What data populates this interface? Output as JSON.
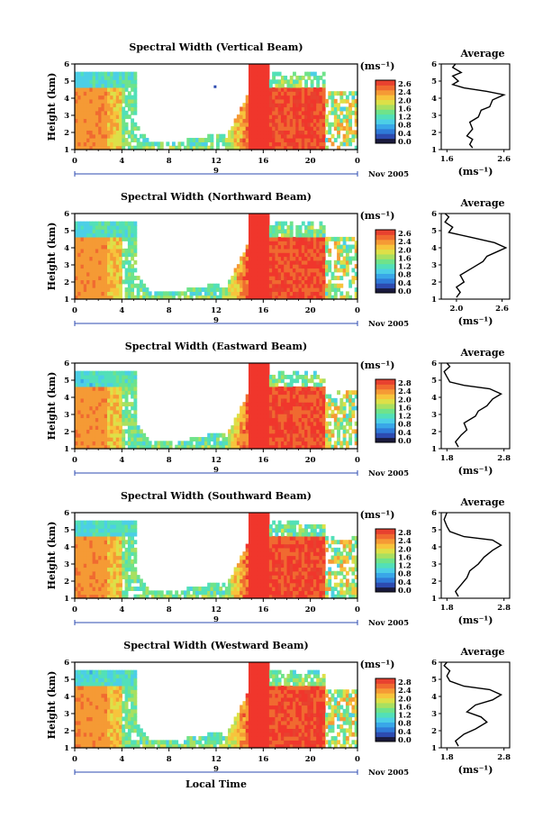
{
  "colors": {
    "scale": [
      "#1a1a3c",
      "#2d4bb0",
      "#2f7bd8",
      "#39a7e8",
      "#4ccfe6",
      "#52e0b8",
      "#6fe38a",
      "#a9e060",
      "#dde048",
      "#f7c43c",
      "#f59a35",
      "#f06a30",
      "#e8412f"
    ],
    "red": "#f0362c",
    "line": "#000000"
  },
  "chart_data": [
    {
      "type": "heatmap",
      "panel": "vertical",
      "title": "Spectral Width (Vertical Beam)",
      "ylabel": "Height (km)",
      "xlabel": "",
      "x_ticks": [
        "0",
        "4",
        "8",
        "12",
        "16",
        "20",
        "0"
      ],
      "y_ticks": [
        "1",
        "2",
        "3",
        "4",
        "5",
        "6"
      ],
      "xlim": [
        0,
        24
      ],
      "ylim": [
        1,
        6
      ],
      "date_label": "9",
      "date_suffix": "Nov 2005",
      "colorbar": {
        "unit": "(ms⁻¹)",
        "ticks": [
          "2.6",
          "2.4",
          "2.0",
          "1.6",
          "1.2",
          "0.8",
          "0.4",
          "0.0"
        ],
        "range": [
          0.0,
          2.6
        ]
      },
      "average": {
        "title": "Average",
        "xlabel": "(ms⁻¹)",
        "x_ticks": [
          "1.6",
          "2.6"
        ],
        "xlim": [
          1.5,
          2.7
        ],
        "y_ticks": [
          "1",
          "2",
          "3",
          "4",
          "5",
          "6"
        ],
        "ylim": [
          1,
          6
        ],
        "profile": [
          [
            2.05,
            1.1
          ],
          [
            2.0,
            1.3
          ],
          [
            2.05,
            1.6
          ],
          [
            1.95,
            1.8
          ],
          [
            2.05,
            2.2
          ],
          [
            2.0,
            2.6
          ],
          [
            2.15,
            2.9
          ],
          [
            2.2,
            3.3
          ],
          [
            2.35,
            3.5
          ],
          [
            2.4,
            3.9
          ],
          [
            2.6,
            4.2
          ],
          [
            2.3,
            4.4
          ],
          [
            1.9,
            4.6
          ],
          [
            1.7,
            4.8
          ],
          [
            1.8,
            5.0
          ],
          [
            1.7,
            5.3
          ],
          [
            1.85,
            5.5
          ],
          [
            1.7,
            5.8
          ],
          [
            1.75,
            6.0
          ]
        ]
      }
    },
    {
      "type": "heatmap",
      "panel": "northward",
      "title": "Spectral Width (Northward Beam)",
      "ylabel": "Height (km)",
      "xlabel": "",
      "x_ticks": [
        "0",
        "4",
        "8",
        "12",
        "16",
        "20",
        "0"
      ],
      "y_ticks": [
        "1",
        "2",
        "3",
        "4",
        "5",
        "6"
      ],
      "xlim": [
        0,
        24
      ],
      "ylim": [
        1,
        6
      ],
      "date_label": "9",
      "date_suffix": "Nov 2005",
      "colorbar": {
        "unit": "(ms⁻¹)",
        "ticks": [
          "2.6",
          "2.4",
          "2.0",
          "1.6",
          "1.2",
          "0.8",
          "0.4",
          "0.0"
        ],
        "range": [
          0.0,
          2.6
        ]
      },
      "average": {
        "title": "Average",
        "xlabel": "(ms⁻¹)",
        "x_ticks": [
          "2.0",
          "2.6"
        ],
        "xlim": [
          1.8,
          2.7
        ],
        "y_ticks": [
          "1",
          "2",
          "3",
          "4",
          "5",
          "6"
        ],
        "ylim": [
          1,
          6
        ],
        "profile": [
          [
            2.0,
            1.1
          ],
          [
            2.05,
            1.4
          ],
          [
            2.0,
            1.7
          ],
          [
            2.1,
            2.0
          ],
          [
            2.05,
            2.4
          ],
          [
            2.2,
            2.8
          ],
          [
            2.35,
            3.2
          ],
          [
            2.4,
            3.5
          ],
          [
            2.55,
            3.8
          ],
          [
            2.65,
            4.0
          ],
          [
            2.5,
            4.3
          ],
          [
            2.2,
            4.6
          ],
          [
            1.9,
            4.9
          ],
          [
            1.95,
            5.2
          ],
          [
            1.85,
            5.5
          ],
          [
            1.9,
            5.8
          ],
          [
            1.85,
            6.0
          ]
        ]
      }
    },
    {
      "type": "heatmap",
      "panel": "eastward",
      "title": "Spectral Width (Eastward Beam)",
      "ylabel": "Height (km)",
      "xlabel": "",
      "x_ticks": [
        "0",
        "4",
        "8",
        "12",
        "16",
        "20",
        "0"
      ],
      "y_ticks": [
        "1",
        "2",
        "3",
        "4",
        "5",
        "6"
      ],
      "xlim": [
        0,
        24
      ],
      "ylim": [
        1,
        6
      ],
      "date_label": "9",
      "date_suffix": "Nov 2005",
      "colorbar": {
        "unit": "(ms⁻¹)",
        "ticks": [
          "2.8",
          "2.4",
          "2.0",
          "1.6",
          "1.2",
          "0.8",
          "0.4",
          "0.0"
        ],
        "range": [
          0.0,
          2.8
        ]
      },
      "average": {
        "title": "Average",
        "xlabel": "(ms⁻¹)",
        "x_ticks": [
          "1.8",
          "2.8"
        ],
        "xlim": [
          1.7,
          2.9
        ],
        "y_ticks": [
          "1",
          "2",
          "3",
          "4",
          "5",
          "6"
        ],
        "ylim": [
          1,
          6
        ],
        "profile": [
          [
            2.0,
            1.1
          ],
          [
            1.95,
            1.4
          ],
          [
            2.05,
            1.8
          ],
          [
            2.15,
            2.1
          ],
          [
            2.1,
            2.5
          ],
          [
            2.3,
            2.9
          ],
          [
            2.35,
            3.2
          ],
          [
            2.5,
            3.5
          ],
          [
            2.6,
            3.9
          ],
          [
            2.75,
            4.2
          ],
          [
            2.55,
            4.5
          ],
          [
            2.1,
            4.7
          ],
          [
            1.85,
            4.9
          ],
          [
            1.8,
            5.2
          ],
          [
            1.75,
            5.5
          ],
          [
            1.85,
            5.8
          ],
          [
            1.8,
            6.0
          ]
        ]
      }
    },
    {
      "type": "heatmap",
      "panel": "southward",
      "title": "Spectral Width (Southward Beam)",
      "ylabel": "Height (km)",
      "xlabel": "",
      "x_ticks": [
        "0",
        "4",
        "8",
        "12",
        "16",
        "20",
        "0"
      ],
      "y_ticks": [
        "1",
        "2",
        "3",
        "4",
        "5",
        "6"
      ],
      "xlim": [
        0,
        24
      ],
      "ylim": [
        1,
        6
      ],
      "date_label": "9",
      "date_suffix": "Nov 2005",
      "colorbar": {
        "unit": "(ms⁻¹)",
        "ticks": [
          "2.8",
          "2.4",
          "2.0",
          "1.6",
          "1.2",
          "0.8",
          "0.4",
          "0.0"
        ],
        "range": [
          0.0,
          2.8
        ]
      },
      "average": {
        "title": "Average",
        "xlabel": "(ms⁻¹)",
        "x_ticks": [
          "1.8",
          "2.8"
        ],
        "xlim": [
          1.7,
          2.9
        ],
        "y_ticks": [
          "1",
          "2",
          "3",
          "4",
          "5",
          "6"
        ],
        "ylim": [
          1,
          6
        ],
        "profile": [
          [
            2.0,
            1.1
          ],
          [
            1.95,
            1.4
          ],
          [
            2.05,
            1.8
          ],
          [
            2.15,
            2.2
          ],
          [
            2.2,
            2.6
          ],
          [
            2.35,
            3.0
          ],
          [
            2.45,
            3.4
          ],
          [
            2.6,
            3.8
          ],
          [
            2.75,
            4.1
          ],
          [
            2.6,
            4.4
          ],
          [
            2.1,
            4.6
          ],
          [
            1.85,
            4.9
          ],
          [
            1.8,
            5.2
          ],
          [
            1.75,
            5.6
          ],
          [
            1.8,
            6.0
          ]
        ]
      }
    },
    {
      "type": "heatmap",
      "panel": "westward",
      "title": "Spectral Width (Westward Beam)",
      "ylabel": "Height (km)",
      "xlabel": "Local Time",
      "x_ticks": [
        "0",
        "4",
        "8",
        "12",
        "16",
        "20",
        "0"
      ],
      "y_ticks": [
        "1",
        "2",
        "3",
        "4",
        "5",
        "6"
      ],
      "xlim": [
        0,
        24
      ],
      "ylim": [
        1,
        6
      ],
      "date_label": "9",
      "date_suffix": "Nov 2005",
      "colorbar": {
        "unit": "(ms⁻¹)",
        "ticks": [
          "2.8",
          "2.4",
          "2.0",
          "1.6",
          "1.2",
          "0.8",
          "0.4",
          "0.0"
        ],
        "range": [
          0.0,
          2.8
        ]
      },
      "average": {
        "title": "Average",
        "xlabel": "(ms⁻¹)",
        "x_ticks": [
          "1.8",
          "2.8"
        ],
        "xlim": [
          1.7,
          2.9
        ],
        "y_ticks": [
          "1",
          "2",
          "3",
          "4",
          "5",
          "6"
        ],
        "ylim": [
          1,
          6
        ],
        "profile": [
          [
            2.0,
            1.1
          ],
          [
            1.95,
            1.4
          ],
          [
            2.1,
            1.8
          ],
          [
            2.3,
            2.1
          ],
          [
            2.5,
            2.5
          ],
          [
            2.4,
            2.8
          ],
          [
            2.15,
            3.1
          ],
          [
            2.3,
            3.5
          ],
          [
            2.6,
            3.8
          ],
          [
            2.75,
            4.1
          ],
          [
            2.55,
            4.4
          ],
          [
            2.1,
            4.6
          ],
          [
            1.85,
            4.9
          ],
          [
            1.8,
            5.2
          ],
          [
            1.85,
            5.5
          ],
          [
            1.75,
            5.8
          ],
          [
            1.8,
            6.0
          ]
        ]
      }
    }
  ]
}
